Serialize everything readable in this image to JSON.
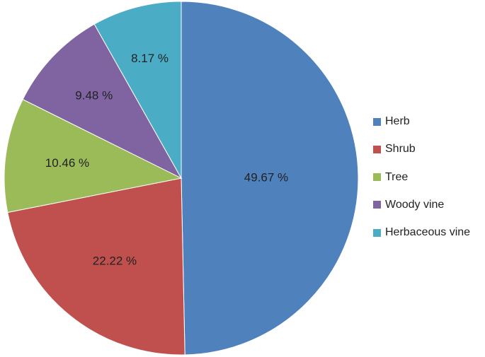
{
  "chart_data": {
    "type": "pie",
    "categories": [
      "Herb",
      "Shrub",
      "Tree",
      "Woody vine",
      "Herbaceous vine"
    ],
    "values": [
      49.67,
      22.22,
      10.46,
      9.48,
      8.17
    ],
    "labels": [
      "49.67 %",
      "22.22 %",
      "10.46 %",
      "9.48 %",
      "8.17 %"
    ],
    "colors": [
      "#4f81bd",
      "#c0504d",
      "#9bbb59",
      "#8064a2",
      "#4bacc6"
    ],
    "legend_position": "right",
    "start_angle": "12 o'clock",
    "direction": "clockwise"
  },
  "legend": {
    "items": [
      {
        "label": "Herb",
        "color": "#4f81bd"
      },
      {
        "label": "Shrub",
        "color": "#c0504d"
      },
      {
        "label": "Tree",
        "color": "#9bbb59"
      },
      {
        "label": "Woody vine",
        "color": "#8064a2"
      },
      {
        "label": "Herbaceous vine",
        "color": "#4bacc6"
      }
    ]
  }
}
